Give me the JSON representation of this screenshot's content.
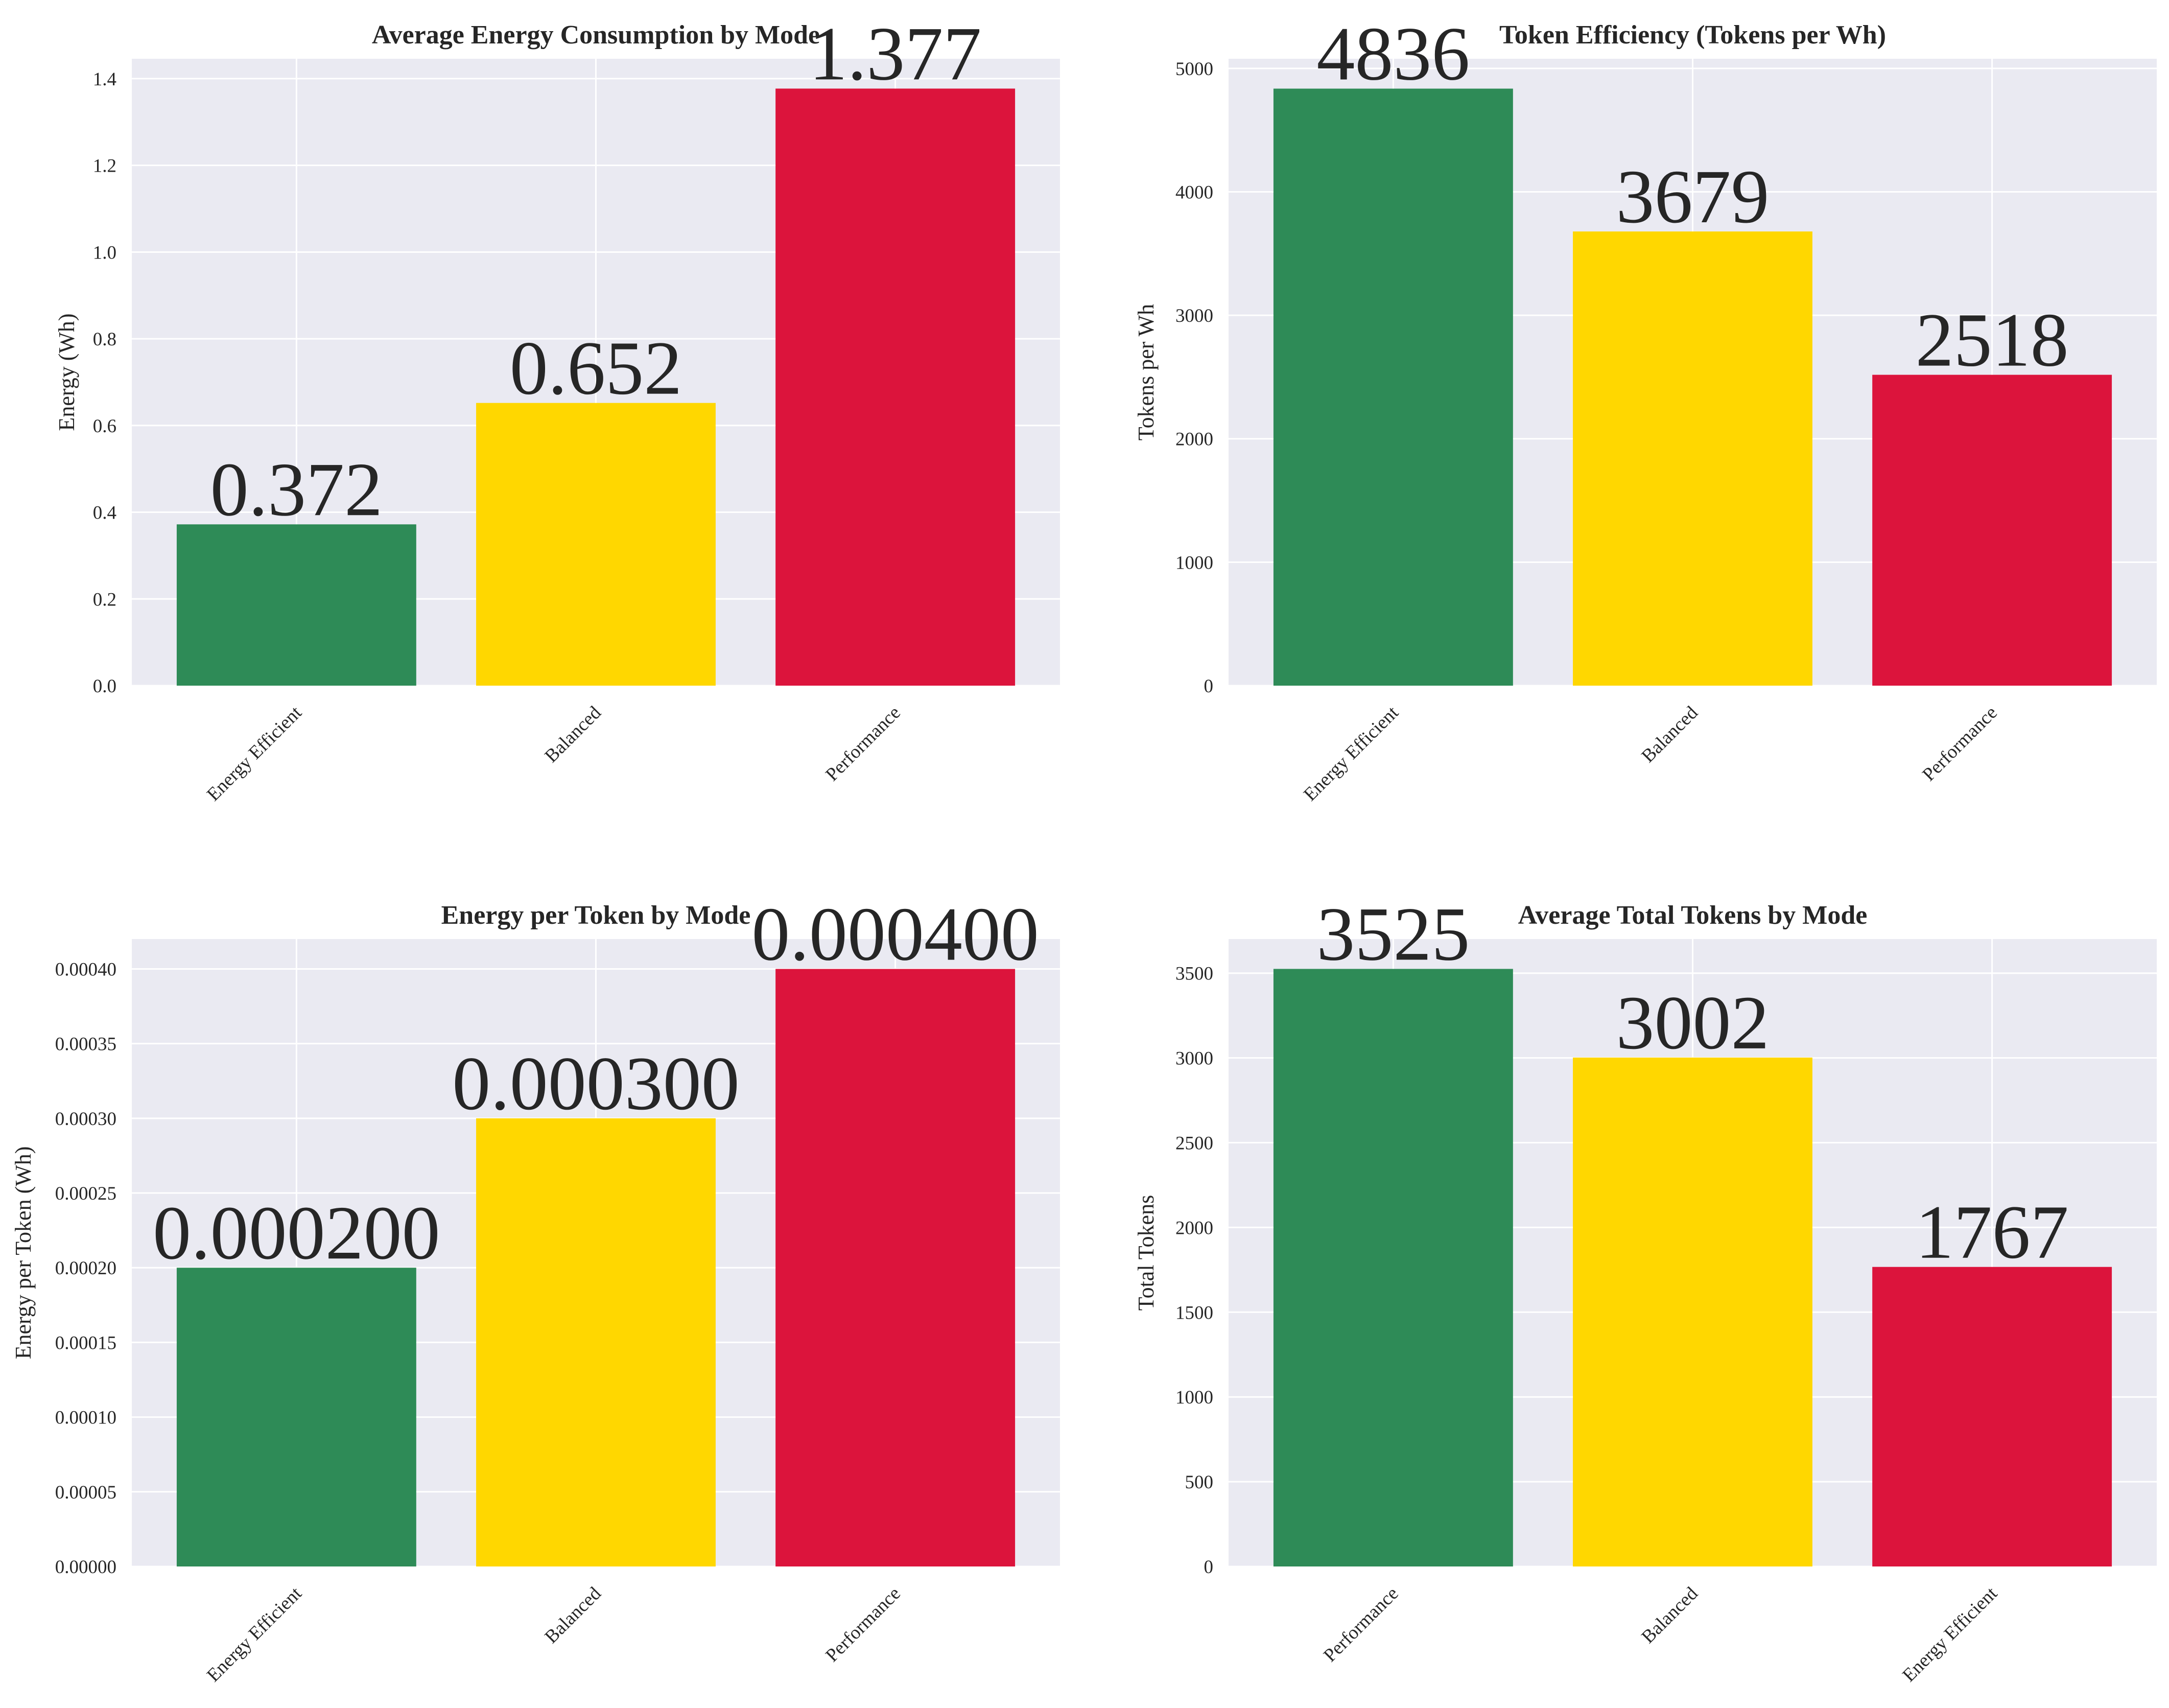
{
  "figure": {
    "background": "#ffffff",
    "plot_background": "#eaeaf2",
    "grid_color": "#ffffff",
    "text_color": "#262626"
  },
  "chart_data": [
    {
      "type": "bar",
      "title": "Average Energy Consumption by Mode",
      "xlabel": "",
      "ylabel": "Energy (Wh)",
      "categories": [
        "Energy Efficient",
        "Balanced",
        "Performance"
      ],
      "values": [
        0.372,
        0.652,
        1.377
      ],
      "value_labels": [
        "0.372",
        "0.652",
        "1.377"
      ],
      "colors": [
        "#2e8b57",
        "#ffd700",
        "#dc143c"
      ],
      "ylim": [
        0,
        1.4458
      ],
      "yticks": [
        0.0,
        0.2,
        0.4,
        0.6,
        0.8,
        1.0,
        1.2,
        1.4
      ],
      "ytick_labels": [
        "0.0",
        "0.2",
        "0.4",
        "0.6",
        "0.8",
        "1.0",
        "1.2",
        "1.4"
      ],
      "grid": true
    },
    {
      "type": "bar",
      "title": "Token Efficiency (Tokens per Wh)",
      "xlabel": "",
      "ylabel": "Tokens per Wh",
      "categories": [
        "Energy Efficient",
        "Balanced",
        "Performance"
      ],
      "values": [
        4836,
        3679,
        2518
      ],
      "value_labels": [
        "4836",
        "3679",
        "2518"
      ],
      "colors": [
        "#2e8b57",
        "#ffd700",
        "#dc143c"
      ],
      "ylim": [
        0,
        5078
      ],
      "yticks": [
        0,
        1000,
        2000,
        3000,
        4000,
        5000
      ],
      "ytick_labels": [
        "0",
        "1000",
        "2000",
        "3000",
        "4000",
        "5000"
      ],
      "grid": true
    },
    {
      "type": "bar",
      "title": "Energy per Token by Mode",
      "xlabel": "",
      "ylabel": "Energy per Token (Wh)",
      "categories": [
        "Energy Efficient",
        "Balanced",
        "Performance"
      ],
      "values": [
        0.0002,
        0.0003,
        0.0004
      ],
      "value_labels": [
        "0.000200",
        "0.000300",
        "0.000400"
      ],
      "colors": [
        "#2e8b57",
        "#ffd700",
        "#dc143c"
      ],
      "ylim": [
        0,
        0.00042
      ],
      "yticks": [
        0,
        5e-05,
        0.0001,
        0.00015,
        0.0002,
        0.00025,
        0.0003,
        0.00035,
        0.0004
      ],
      "ytick_labels": [
        "0.00000",
        "0.00005",
        "0.00010",
        "0.00015",
        "0.00020",
        "0.00025",
        "0.00030",
        "0.00035",
        "0.00040"
      ],
      "grid": true
    },
    {
      "type": "bar",
      "title": "Average Total Tokens by Mode",
      "xlabel": "",
      "ylabel": "Total Tokens",
      "categories": [
        "Performance",
        "Balanced",
        "Energy Efficient"
      ],
      "values": [
        3525,
        3002,
        1767
      ],
      "value_labels": [
        "3525",
        "3002",
        "1767"
      ],
      "colors": [
        "#2e8b57",
        "#ffd700",
        "#dc143c"
      ],
      "ylim": [
        0,
        3701
      ],
      "yticks": [
        0,
        500,
        1000,
        1500,
        2000,
        2500,
        3000,
        3500
      ],
      "ytick_labels": [
        "0",
        "500",
        "1000",
        "1500",
        "2000",
        "2500",
        "3000",
        "3500"
      ],
      "grid": true
    }
  ]
}
